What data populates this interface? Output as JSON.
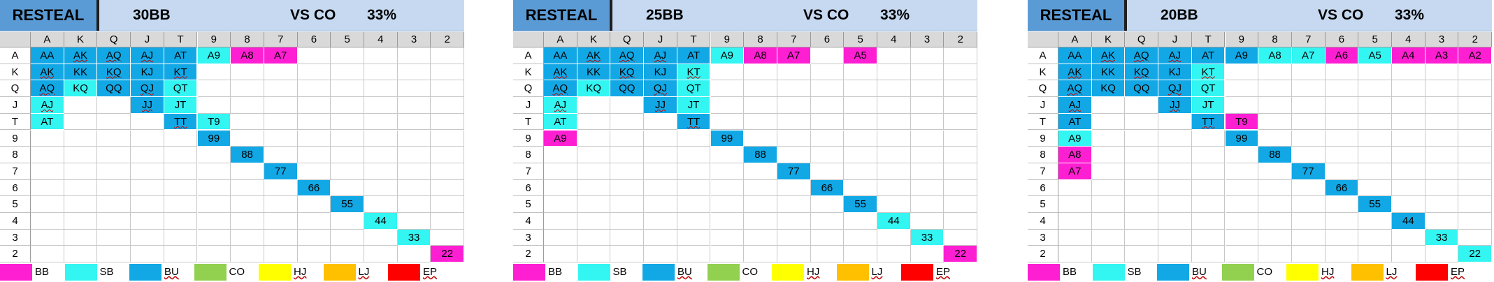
{
  "colors": {
    "BB": "#ff1fd2",
    "SB": "#33f5f2",
    "BU": "#12a8e6",
    "CO": "#92d050",
    "HJ": "#ffff00",
    "LJ": "#ffc000",
    "EP": "#ff0000"
  },
  "columns": [
    "A",
    "K",
    "Q",
    "J",
    "T",
    "9",
    "8",
    "7",
    "6",
    "5",
    "4",
    "3",
    "2"
  ],
  "rows": [
    "A",
    "K",
    "Q",
    "J",
    "T",
    "9",
    "8",
    "7",
    "6",
    "5",
    "4",
    "3",
    "2"
  ],
  "legend": [
    {
      "key": "BB",
      "label": "BB",
      "underline": false
    },
    {
      "key": "SB",
      "label": "SB",
      "underline": false
    },
    {
      "key": "BU",
      "label": "BU",
      "underline": true
    },
    {
      "key": "CO",
      "label": "CO",
      "underline": false
    },
    {
      "key": "HJ",
      "label": "HJ",
      "underline": true
    },
    {
      "key": "LJ",
      "label": "LJ",
      "underline": true
    },
    {
      "key": "EP",
      "label": "EP",
      "underline": true
    }
  ],
  "panels": [
    {
      "title": "RESTEAL",
      "stack": "30BB",
      "vs": "VS CO",
      "pct": "33%",
      "cells": [
        {
          "r": 0,
          "c": 0,
          "t": "AA",
          "k": "BU"
        },
        {
          "r": 0,
          "c": 1,
          "t": "AK",
          "k": "BU",
          "u": true
        },
        {
          "r": 0,
          "c": 2,
          "t": "AQ",
          "k": "BU",
          "u": true
        },
        {
          "r": 0,
          "c": 3,
          "t": "AJ",
          "k": "BU",
          "u": true
        },
        {
          "r": 0,
          "c": 4,
          "t": "AT",
          "k": "BU"
        },
        {
          "r": 0,
          "c": 5,
          "t": "A9",
          "k": "SB"
        },
        {
          "r": 0,
          "c": 6,
          "t": "A8",
          "k": "BB"
        },
        {
          "r": 0,
          "c": 7,
          "t": "A7",
          "k": "BB"
        },
        {
          "r": 1,
          "c": 0,
          "t": "AK",
          "k": "BU",
          "u": true
        },
        {
          "r": 1,
          "c": 1,
          "t": "KK",
          "k": "BU"
        },
        {
          "r": 1,
          "c": 2,
          "t": "KQ",
          "k": "BU",
          "u": true
        },
        {
          "r": 1,
          "c": 3,
          "t": "KJ",
          "k": "BU"
        },
        {
          "r": 1,
          "c": 4,
          "t": "KT",
          "k": "BU",
          "u": true
        },
        {
          "r": 2,
          "c": 0,
          "t": "AQ",
          "k": "BU",
          "u": true
        },
        {
          "r": 2,
          "c": 1,
          "t": "KQ",
          "k": "SB"
        },
        {
          "r": 2,
          "c": 2,
          "t": "QQ",
          "k": "BU"
        },
        {
          "r": 2,
          "c": 3,
          "t": "QJ",
          "k": "BU",
          "u": true
        },
        {
          "r": 2,
          "c": 4,
          "t": "QT",
          "k": "SB"
        },
        {
          "r": 3,
          "c": 0,
          "t": "AJ",
          "k": "SB",
          "u": true
        },
        {
          "r": 3,
          "c": 3,
          "t": "JJ",
          "k": "BU",
          "u": true
        },
        {
          "r": 3,
          "c": 4,
          "t": "JT",
          "k": "SB"
        },
        {
          "r": 4,
          "c": 0,
          "t": "AT",
          "k": "SB"
        },
        {
          "r": 4,
          "c": 4,
          "t": "TT",
          "k": "BU",
          "u": true
        },
        {
          "r": 4,
          "c": 5,
          "t": "T9",
          "k": "SB"
        },
        {
          "r": 5,
          "c": 5,
          "t": "99",
          "k": "BU"
        },
        {
          "r": 6,
          "c": 6,
          "t": "88",
          "k": "BU"
        },
        {
          "r": 7,
          "c": 7,
          "t": "77",
          "k": "BU"
        },
        {
          "r": 8,
          "c": 8,
          "t": "66",
          "k": "BU"
        },
        {
          "r": 9,
          "c": 9,
          "t": "55",
          "k": "BU"
        },
        {
          "r": 10,
          "c": 10,
          "t": "44",
          "k": "SB"
        },
        {
          "r": 11,
          "c": 11,
          "t": "33",
          "k": "SB"
        },
        {
          "r": 12,
          "c": 12,
          "t": "22",
          "k": "BB"
        }
      ]
    },
    {
      "title": "RESTEAL",
      "stack": "25BB",
      "vs": "VS CO",
      "pct": "33%",
      "cells": [
        {
          "r": 0,
          "c": 0,
          "t": "AA",
          "k": "BU"
        },
        {
          "r": 0,
          "c": 1,
          "t": "AK",
          "k": "BU",
          "u": true
        },
        {
          "r": 0,
          "c": 2,
          "t": "AQ",
          "k": "BU",
          "u": true
        },
        {
          "r": 0,
          "c": 3,
          "t": "AJ",
          "k": "BU",
          "u": true
        },
        {
          "r": 0,
          "c": 4,
          "t": "AT",
          "k": "BU"
        },
        {
          "r": 0,
          "c": 5,
          "t": "A9",
          "k": "SB"
        },
        {
          "r": 0,
          "c": 6,
          "t": "A8",
          "k": "BB"
        },
        {
          "r": 0,
          "c": 7,
          "t": "A7",
          "k": "BB"
        },
        {
          "r": 0,
          "c": 9,
          "t": "A5",
          "k": "BB"
        },
        {
          "r": 1,
          "c": 0,
          "t": "AK",
          "k": "BU",
          "u": true
        },
        {
          "r": 1,
          "c": 1,
          "t": "KK",
          "k": "BU"
        },
        {
          "r": 1,
          "c": 2,
          "t": "KQ",
          "k": "BU",
          "u": true
        },
        {
          "r": 1,
          "c": 3,
          "t": "KJ",
          "k": "BU"
        },
        {
          "r": 1,
          "c": 4,
          "t": "KT",
          "k": "SB",
          "u": true
        },
        {
          "r": 2,
          "c": 0,
          "t": "AQ",
          "k": "BU",
          "u": true
        },
        {
          "r": 2,
          "c": 1,
          "t": "KQ",
          "k": "SB"
        },
        {
          "r": 2,
          "c": 2,
          "t": "QQ",
          "k": "BU"
        },
        {
          "r": 2,
          "c": 3,
          "t": "QJ",
          "k": "BU",
          "u": true
        },
        {
          "r": 2,
          "c": 4,
          "t": "QT",
          "k": "SB"
        },
        {
          "r": 3,
          "c": 0,
          "t": "AJ",
          "k": "SB",
          "u": true
        },
        {
          "r": 3,
          "c": 3,
          "t": "JJ",
          "k": "BU",
          "u": true
        },
        {
          "r": 3,
          "c": 4,
          "t": "JT",
          "k": "SB"
        },
        {
          "r": 4,
          "c": 0,
          "t": "AT",
          "k": "SB"
        },
        {
          "r": 4,
          "c": 4,
          "t": "TT",
          "k": "BU",
          "u": true
        },
        {
          "r": 5,
          "c": 0,
          "t": "A9",
          "k": "BB"
        },
        {
          "r": 5,
          "c": 5,
          "t": "99",
          "k": "BU"
        },
        {
          "r": 6,
          "c": 6,
          "t": "88",
          "k": "BU"
        },
        {
          "r": 7,
          "c": 7,
          "t": "77",
          "k": "BU"
        },
        {
          "r": 8,
          "c": 8,
          "t": "66",
          "k": "BU"
        },
        {
          "r": 9,
          "c": 9,
          "t": "55",
          "k": "BU"
        },
        {
          "r": 10,
          "c": 10,
          "t": "44",
          "k": "SB"
        },
        {
          "r": 11,
          "c": 11,
          "t": "33",
          "k": "SB"
        },
        {
          "r": 12,
          "c": 12,
          "t": "22",
          "k": "BB"
        }
      ]
    },
    {
      "title": "RESTEAL",
      "stack": "20BB",
      "vs": "VS CO",
      "pct": "33%",
      "cells": [
        {
          "r": 0,
          "c": 0,
          "t": "AA",
          "k": "BU"
        },
        {
          "r": 0,
          "c": 1,
          "t": "AK",
          "k": "BU",
          "u": true
        },
        {
          "r": 0,
          "c": 2,
          "t": "AQ",
          "k": "BU",
          "u": true
        },
        {
          "r": 0,
          "c": 3,
          "t": "AJ",
          "k": "BU",
          "u": true
        },
        {
          "r": 0,
          "c": 4,
          "t": "AT",
          "k": "BU"
        },
        {
          "r": 0,
          "c": 5,
          "t": "A9",
          "k": "BU"
        },
        {
          "r": 0,
          "c": 6,
          "t": "A8",
          "k": "SB"
        },
        {
          "r": 0,
          "c": 7,
          "t": "A7",
          "k": "SB"
        },
        {
          "r": 0,
          "c": 8,
          "t": "A6",
          "k": "BB"
        },
        {
          "r": 0,
          "c": 9,
          "t": "A5",
          "k": "SB"
        },
        {
          "r": 0,
          "c": 10,
          "t": "A4",
          "k": "BB"
        },
        {
          "r": 0,
          "c": 11,
          "t": "A3",
          "k": "BB"
        },
        {
          "r": 0,
          "c": 12,
          "t": "A2",
          "k": "BB"
        },
        {
          "r": 1,
          "c": 0,
          "t": "AK",
          "k": "BU",
          "u": true
        },
        {
          "r": 1,
          "c": 1,
          "t": "KK",
          "k": "BU"
        },
        {
          "r": 1,
          "c": 2,
          "t": "KQ",
          "k": "BU",
          "u": true
        },
        {
          "r": 1,
          "c": 3,
          "t": "KJ",
          "k": "BU"
        },
        {
          "r": 1,
          "c": 4,
          "t": "KT",
          "k": "SB",
          "u": true
        },
        {
          "r": 2,
          "c": 0,
          "t": "AQ",
          "k": "BU",
          "u": true
        },
        {
          "r": 2,
          "c": 1,
          "t": "KQ",
          "k": "BU"
        },
        {
          "r": 2,
          "c": 2,
          "t": "QQ",
          "k": "BU"
        },
        {
          "r": 2,
          "c": 3,
          "t": "QJ",
          "k": "BU",
          "u": true
        },
        {
          "r": 2,
          "c": 4,
          "t": "QT",
          "k": "SB"
        },
        {
          "r": 3,
          "c": 0,
          "t": "AJ",
          "k": "BU",
          "u": true
        },
        {
          "r": 3,
          "c": 3,
          "t": "JJ",
          "k": "BU",
          "u": true
        },
        {
          "r": 3,
          "c": 4,
          "t": "JT",
          "k": "SB"
        },
        {
          "r": 4,
          "c": 0,
          "t": "AT",
          "k": "BU"
        },
        {
          "r": 4,
          "c": 4,
          "t": "TT",
          "k": "BU",
          "u": true
        },
        {
          "r": 4,
          "c": 5,
          "t": "T9",
          "k": "BB"
        },
        {
          "r": 5,
          "c": 0,
          "t": "A9",
          "k": "SB"
        },
        {
          "r": 5,
          "c": 5,
          "t": "99",
          "k": "BU"
        },
        {
          "r": 6,
          "c": 0,
          "t": "A8",
          "k": "BB"
        },
        {
          "r": 6,
          "c": 6,
          "t": "88",
          "k": "BU"
        },
        {
          "r": 7,
          "c": 0,
          "t": "A7",
          "k": "BB"
        },
        {
          "r": 7,
          "c": 7,
          "t": "77",
          "k": "BU"
        },
        {
          "r": 8,
          "c": 8,
          "t": "66",
          "k": "BU"
        },
        {
          "r": 9,
          "c": 9,
          "t": "55",
          "k": "BU"
        },
        {
          "r": 10,
          "c": 10,
          "t": "44",
          "k": "BU"
        },
        {
          "r": 11,
          "c": 11,
          "t": "33",
          "k": "SB"
        },
        {
          "r": 12,
          "c": 12,
          "t": "22",
          "k": "SB"
        }
      ]
    }
  ]
}
